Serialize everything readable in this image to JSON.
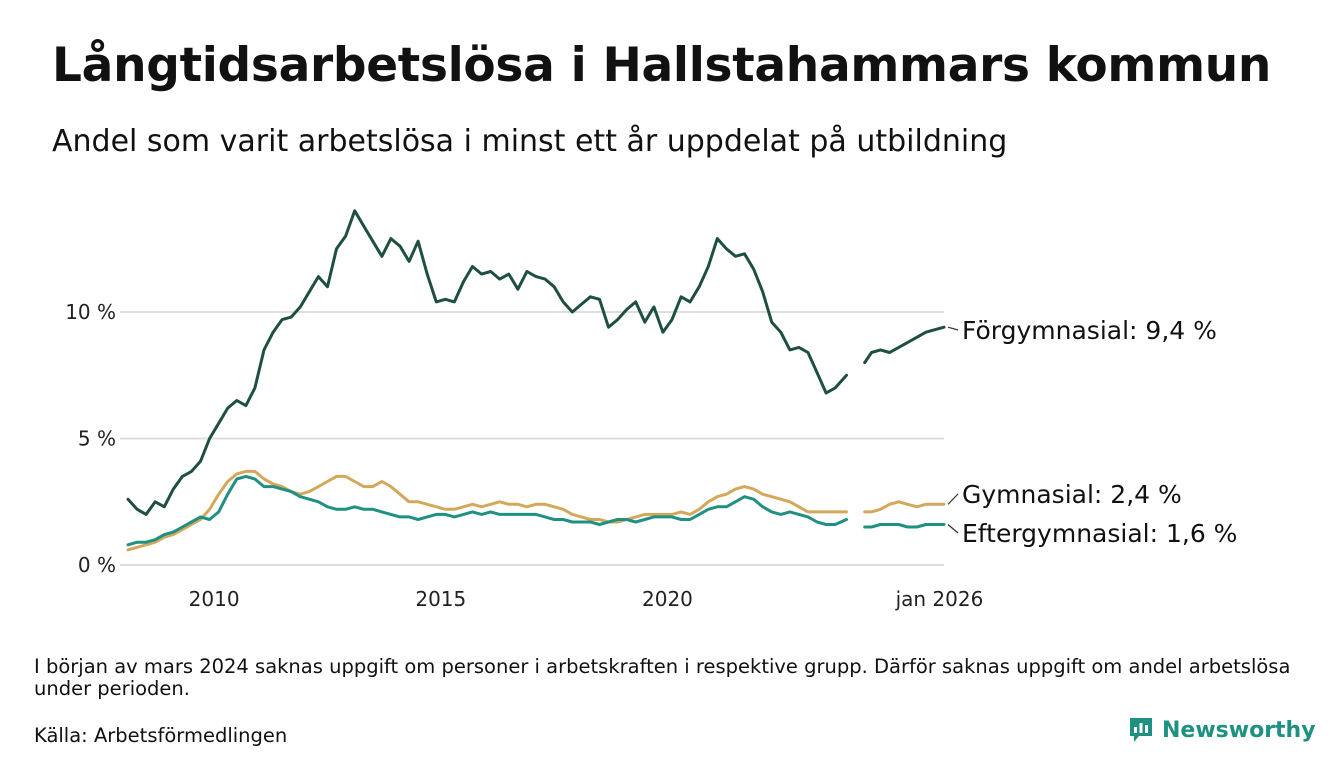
{
  "title": "Långtidsarbetslösa i Hallstahammars kommun",
  "subtitle": "Andel som varit arbetslösa i minst ett år uppdelat på utbildning",
  "footnote": "I början av mars 2024 saknas uppgift om personer i arbetskraften i respektive grupp. Därför saknas uppgift om andel arbetslösa under perioden.",
  "source": "Källa: Arbetsförmedlingen",
  "brand": "Newsworthy",
  "colors": {
    "forgymnasial": "#1f4e42",
    "gymnasial": "#d4a85a",
    "eftergymnasial": "#1f9182",
    "grid": "#dddddd",
    "brand": "#1f9182"
  },
  "chart_data": {
    "type": "line",
    "title": "Långtidsarbetslösa i Hallstahammars kommun",
    "xlabel": "",
    "ylabel": "",
    "xlim": [
      2008.1,
      2026.1
    ],
    "ylim": [
      0,
      14.5
    ],
    "y_ticks": [
      {
        "value": 0,
        "label": "0 %"
      },
      {
        "value": 5,
        "label": "5 %"
      },
      {
        "value": 10,
        "label": "10 %"
      }
    ],
    "x_ticks": [
      {
        "value": 2010,
        "label": "2010"
      },
      {
        "value": 2015,
        "label": "2015"
      },
      {
        "value": 2020,
        "label": "2020"
      },
      {
        "value": 2026,
        "label": "jan 2026"
      }
    ],
    "grid": true,
    "gap": [
      2024.0,
      2024.35
    ],
    "series": [
      {
        "key": "forgymnasial",
        "name": "Förgymnasial",
        "end_label": "Förgymnasial: 9,4 %",
        "x": [
          2008.1,
          2008.3,
          2008.5,
          2008.7,
          2008.9,
          2009.1,
          2009.3,
          2009.5,
          2009.7,
          2009.9,
          2010.1,
          2010.3,
          2010.5,
          2010.7,
          2010.9,
          2011.1,
          2011.3,
          2011.5,
          2011.7,
          2011.9,
          2012.1,
          2012.3,
          2012.5,
          2012.7,
          2012.9,
          2013.1,
          2013.3,
          2013.5,
          2013.7,
          2013.9,
          2014.1,
          2014.3,
          2014.5,
          2014.7,
          2014.9,
          2015.1,
          2015.3,
          2015.5,
          2015.7,
          2015.9,
          2016.1,
          2016.3,
          2016.5,
          2016.7,
          2016.9,
          2017.1,
          2017.3,
          2017.5,
          2017.7,
          2017.9,
          2018.1,
          2018.3,
          2018.5,
          2018.7,
          2018.9,
          2019.1,
          2019.3,
          2019.5,
          2019.7,
          2019.9,
          2020.1,
          2020.3,
          2020.5,
          2020.7,
          2020.9,
          2021.1,
          2021.3,
          2021.5,
          2021.7,
          2021.9,
          2022.1,
          2022.3,
          2022.5,
          2022.7,
          2022.9,
          2023.1,
          2023.3,
          2023.5,
          2023.7,
          2023.95,
          2024.35,
          2024.5,
          2024.7,
          2024.9,
          2025.1,
          2025.3,
          2025.5,
          2025.7,
          2025.9,
          2026.1
        ],
        "values": [
          2.6,
          2.2,
          2.0,
          2.5,
          2.3,
          3.0,
          3.5,
          3.7,
          4.1,
          5.0,
          5.6,
          6.2,
          6.5,
          6.3,
          7.0,
          8.5,
          9.2,
          9.7,
          9.8,
          10.2,
          10.8,
          11.4,
          11.0,
          12.5,
          13.0,
          14.0,
          13.4,
          12.8,
          12.2,
          12.9,
          12.6,
          12.0,
          12.8,
          11.5,
          10.4,
          10.5,
          10.4,
          11.2,
          11.8,
          11.5,
          11.6,
          11.3,
          11.5,
          10.9,
          11.6,
          11.4,
          11.3,
          11.0,
          10.4,
          10.0,
          10.3,
          10.6,
          10.5,
          9.4,
          9.7,
          10.1,
          10.4,
          9.6,
          10.2,
          9.2,
          9.7,
          10.6,
          10.4,
          11.0,
          11.8,
          12.9,
          12.5,
          12.2,
          12.3,
          11.7,
          10.8,
          9.6,
          9.2,
          8.5,
          8.6,
          8.4,
          7.6,
          6.8,
          7.0,
          7.5,
          8.0,
          8.4,
          8.5,
          8.4,
          8.6,
          8.8,
          9.0,
          9.2,
          9.3,
          9.4
        ]
      },
      {
        "key": "gymnasial",
        "name": "Gymnasial",
        "end_label": "Gymnasial: 2,4 %",
        "x": [
          2008.1,
          2008.3,
          2008.5,
          2008.7,
          2008.9,
          2009.1,
          2009.3,
          2009.5,
          2009.7,
          2009.9,
          2010.1,
          2010.3,
          2010.5,
          2010.7,
          2010.9,
          2011.1,
          2011.3,
          2011.5,
          2011.7,
          2011.9,
          2012.1,
          2012.3,
          2012.5,
          2012.7,
          2012.9,
          2013.1,
          2013.3,
          2013.5,
          2013.7,
          2013.9,
          2014.1,
          2014.3,
          2014.5,
          2014.7,
          2014.9,
          2015.1,
          2015.3,
          2015.5,
          2015.7,
          2015.9,
          2016.1,
          2016.3,
          2016.5,
          2016.7,
          2016.9,
          2017.1,
          2017.3,
          2017.5,
          2017.7,
          2017.9,
          2018.1,
          2018.3,
          2018.5,
          2018.7,
          2018.9,
          2019.1,
          2019.3,
          2019.5,
          2019.7,
          2019.9,
          2020.1,
          2020.3,
          2020.5,
          2020.7,
          2020.9,
          2021.1,
          2021.3,
          2021.5,
          2021.7,
          2021.9,
          2022.1,
          2022.3,
          2022.5,
          2022.7,
          2022.9,
          2023.1,
          2023.3,
          2023.5,
          2023.7,
          2023.95,
          2024.35,
          2024.5,
          2024.7,
          2024.9,
          2025.1,
          2025.3,
          2025.5,
          2025.7,
          2025.9,
          2026.1
        ],
        "values": [
          0.6,
          0.7,
          0.8,
          0.9,
          1.1,
          1.2,
          1.4,
          1.6,
          1.8,
          2.2,
          2.8,
          3.3,
          3.6,
          3.7,
          3.7,
          3.4,
          3.2,
          3.1,
          2.9,
          2.8,
          2.9,
          3.1,
          3.3,
          3.5,
          3.5,
          3.3,
          3.1,
          3.1,
          3.3,
          3.1,
          2.8,
          2.5,
          2.5,
          2.4,
          2.3,
          2.2,
          2.2,
          2.3,
          2.4,
          2.3,
          2.4,
          2.5,
          2.4,
          2.4,
          2.3,
          2.4,
          2.4,
          2.3,
          2.2,
          2.0,
          1.9,
          1.8,
          1.8,
          1.7,
          1.7,
          1.8,
          1.9,
          2.0,
          2.0,
          2.0,
          2.0,
          2.1,
          2.0,
          2.2,
          2.5,
          2.7,
          2.8,
          3.0,
          3.1,
          3.0,
          2.8,
          2.7,
          2.6,
          2.5,
          2.3,
          2.1,
          2.1,
          2.1,
          2.1,
          2.1,
          2.1,
          2.1,
          2.2,
          2.4,
          2.5,
          2.4,
          2.3,
          2.4,
          2.4,
          2.4
        ]
      },
      {
        "key": "eftergymnasial",
        "name": "Eftergymnasial",
        "end_label": "Eftergymnasial: 1,6 %",
        "x": [
          2008.1,
          2008.3,
          2008.5,
          2008.7,
          2008.9,
          2009.1,
          2009.3,
          2009.5,
          2009.7,
          2009.9,
          2010.1,
          2010.3,
          2010.5,
          2010.7,
          2010.9,
          2011.1,
          2011.3,
          2011.5,
          2011.7,
          2011.9,
          2012.1,
          2012.3,
          2012.5,
          2012.7,
          2012.9,
          2013.1,
          2013.3,
          2013.5,
          2013.7,
          2013.9,
          2014.1,
          2014.3,
          2014.5,
          2014.7,
          2014.9,
          2015.1,
          2015.3,
          2015.5,
          2015.7,
          2015.9,
          2016.1,
          2016.3,
          2016.5,
          2016.7,
          2016.9,
          2017.1,
          2017.3,
          2017.5,
          2017.7,
          2017.9,
          2018.1,
          2018.3,
          2018.5,
          2018.7,
          2018.9,
          2019.1,
          2019.3,
          2019.5,
          2019.7,
          2019.9,
          2020.1,
          2020.3,
          2020.5,
          2020.7,
          2020.9,
          2021.1,
          2021.3,
          2021.5,
          2021.7,
          2021.9,
          2022.1,
          2022.3,
          2022.5,
          2022.7,
          2022.9,
          2023.1,
          2023.3,
          2023.5,
          2023.7,
          2023.95,
          2024.35,
          2024.5,
          2024.7,
          2024.9,
          2025.1,
          2025.3,
          2025.5,
          2025.7,
          2025.9,
          2026.1
        ],
        "values": [
          0.8,
          0.9,
          0.9,
          1.0,
          1.2,
          1.3,
          1.5,
          1.7,
          1.9,
          1.8,
          2.1,
          2.8,
          3.4,
          3.5,
          3.4,
          3.1,
          3.1,
          3.0,
          2.9,
          2.7,
          2.6,
          2.5,
          2.3,
          2.2,
          2.2,
          2.3,
          2.2,
          2.2,
          2.1,
          2.0,
          1.9,
          1.9,
          1.8,
          1.9,
          2.0,
          2.0,
          1.9,
          2.0,
          2.1,
          2.0,
          2.1,
          2.0,
          2.0,
          2.0,
          2.0,
          2.0,
          1.9,
          1.8,
          1.8,
          1.7,
          1.7,
          1.7,
          1.6,
          1.7,
          1.8,
          1.8,
          1.7,
          1.8,
          1.9,
          1.9,
          1.9,
          1.8,
          1.8,
          2.0,
          2.2,
          2.3,
          2.3,
          2.5,
          2.7,
          2.6,
          2.3,
          2.1,
          2.0,
          2.1,
          2.0,
          1.9,
          1.7,
          1.6,
          1.6,
          1.8,
          1.5,
          1.5,
          1.6,
          1.6,
          1.6,
          1.5,
          1.5,
          1.6,
          1.6,
          1.6
        ]
      }
    ]
  }
}
